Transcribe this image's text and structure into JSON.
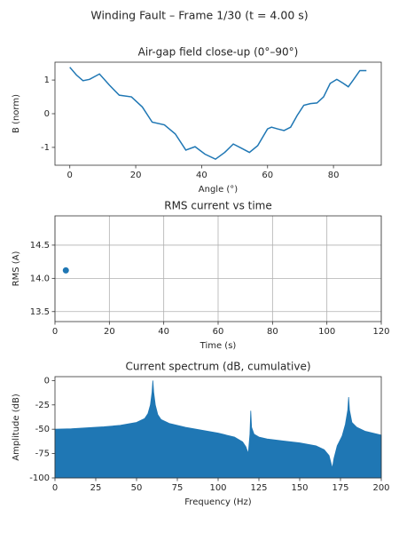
{
  "title": "Winding Fault – Frame 1/30 (t = 4.00 s)",
  "chart_data": [
    {
      "type": "line",
      "title": "Air-gap field close-up (0°–90°)",
      "x_label": "Angle (°)",
      "y_label": "B (norm)",
      "x": [
        0,
        2,
        4,
        6,
        9,
        12,
        15,
        18.7,
        22,
        25,
        28.7,
        32,
        35.2,
        38,
        41,
        44.2,
        47,
        49.6,
        52,
        54.5,
        57,
        60,
        61.2,
        63,
        65,
        67,
        69,
        71,
        73,
        75,
        77,
        79,
        81,
        83,
        84.5,
        86,
        88,
        90
      ],
      "series": [
        {
          "color": "#1f77b4",
          "values": [
            1.38,
            1.15,
            0.98,
            1.02,
            1.18,
            0.85,
            0.55,
            0.5,
            0.2,
            -0.25,
            -0.33,
            -0.6,
            -1.08,
            -0.98,
            -1.2,
            -1.35,
            -1.15,
            -0.9,
            -1.02,
            -1.15,
            -0.95,
            -0.45,
            -0.4,
            -0.45,
            -0.5,
            -0.4,
            -0.05,
            0.25,
            0.3,
            0.32,
            0.5,
            0.9,
            1.02,
            0.9,
            0.8,
            1.0,
            1.28,
            1.28
          ]
        }
      ],
      "xlim": [
        -4.5,
        94.5
      ],
      "ylim": [
        -1.53,
        1.53
      ],
      "xticks": [
        0,
        20,
        40,
        60,
        80
      ],
      "yticks": [
        -1,
        0,
        1
      ],
      "grid": false
    },
    {
      "type": "scatter",
      "title": "RMS current vs time",
      "x_label": "Time (s)",
      "y_label": "RMS (A)",
      "x": [
        4.0
      ],
      "series": [
        {
          "color": "#1f77b4",
          "values": [
            14.12
          ]
        }
      ],
      "xlim": [
        0,
        120
      ],
      "ylim": [
        13.35,
        14.94
      ],
      "xticks": [
        0,
        20,
        40,
        60,
        80,
        100,
        120
      ],
      "yticks": [
        13.5,
        {
          "value": 14,
          "label": "14.0"
        },
        14.5
      ],
      "grid": true
    },
    {
      "type": "area",
      "title": "Current spectrum (dB, cumulative)",
      "x_label": "Frequency (Hz)",
      "y_label": "Amplitude (dB)",
      "x": [
        0,
        10,
        20,
        30,
        40,
        50,
        55,
        57,
        58.5,
        59.5,
        60,
        60.5,
        61.5,
        63,
        65,
        70,
        80,
        90,
        100,
        110,
        115,
        117,
        118.5,
        119.5,
        120,
        120.5,
        122,
        125,
        130,
        140,
        150,
        160,
        165,
        168,
        170,
        171,
        173,
        176,
        178,
        179.5,
        180,
        180.5,
        182,
        185,
        190,
        200
      ],
      "series": [
        {
          "color": "#1f77b4",
          "values": [
            -50,
            -49.5,
            -48.5,
            -47.5,
            -46,
            -43,
            -39,
            -34,
            -25,
            -12,
            0,
            -12,
            -25,
            -35,
            -40,
            -44,
            -48,
            -51,
            -54,
            -58,
            -63,
            -68,
            -75,
            -55,
            -31,
            -48,
            -55,
            -58,
            -60,
            -62,
            -64,
            -67,
            -71,
            -77,
            -90,
            -80,
            -67,
            -57,
            -45,
            -30,
            -17,
            -30,
            -43,
            -48,
            -52,
            -56
          ]
        }
      ],
      "xlim": [
        0,
        200
      ],
      "ylim": [
        -100,
        4
      ],
      "xticks": [
        0,
        25,
        50,
        75,
        100,
        125,
        150,
        175,
        200
      ],
      "yticks": [
        -100,
        -75,
        -50,
        -25,
        0
      ],
      "grid": false
    }
  ]
}
